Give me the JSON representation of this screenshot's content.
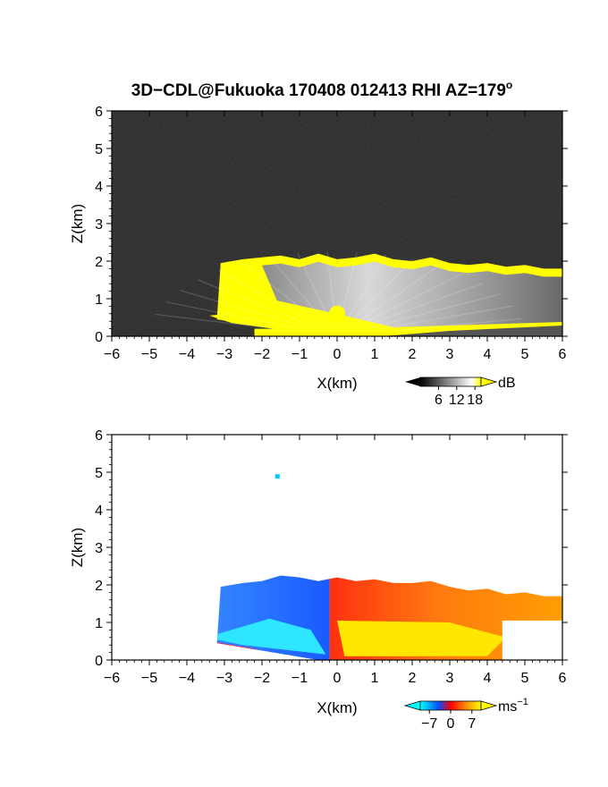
{
  "title": "3D−CDL@Fukuoka 170408 012413 RHI AZ=179",
  "title_superscript": "o",
  "chart_data": [
    {
      "type": "heatmap",
      "panel": "top",
      "variable": "SNR",
      "xlabel": "X(km)",
      "ylabel": "Z(km)",
      "xlim": [
        -6,
        6
      ],
      "ylim": [
        0,
        6
      ],
      "x_ticks": [
        "−6",
        "−5",
        "−4",
        "−3",
        "−2",
        "−1",
        "0",
        "1",
        "2",
        "3",
        "4",
        "5",
        "6"
      ],
      "y_ticks": [
        "0",
        "1",
        "2",
        "3",
        "4",
        "5",
        "6"
      ],
      "background": "#262626",
      "colorbar": {
        "unit": "dB",
        "ticks": [
          "6",
          "12",
          "18"
        ],
        "tick_values": [
          6,
          12,
          18
        ],
        "range": [
          0,
          20
        ],
        "colors": [
          "#000000",
          "#ffffff",
          "#ffff00"
        ]
      },
      "echo_top_km": {
        "x": [
          -3.1,
          -2.5,
          -2.0,
          -1.5,
          -1.0,
          -0.5,
          0.0,
          0.5,
          1.0,
          1.5,
          2.0,
          2.5,
          3.0,
          3.5,
          4.0,
          4.5,
          5.0,
          5.5,
          6.0
        ],
        "z": [
          1.95,
          2.05,
          2.1,
          2.15,
          2.05,
          2.2,
          2.05,
          2.1,
          2.2,
          2.05,
          2.0,
          2.1,
          1.95,
          1.9,
          1.95,
          1.85,
          1.9,
          1.8,
          1.8
        ]
      }
    },
    {
      "type": "heatmap",
      "panel": "bottom",
      "variable": "Doppler velocity",
      "xlabel": "X(km)",
      "ylabel": "Z(km)",
      "xlim": [
        -6,
        6
      ],
      "ylim": [
        0,
        6
      ],
      "x_ticks": [
        "−6",
        "−5",
        "−4",
        "−3",
        "−2",
        "−1",
        "0",
        "1",
        "2",
        "3",
        "4",
        "5",
        "6"
      ],
      "y_ticks": [
        "0",
        "1",
        "2",
        "3",
        "4",
        "5",
        "6"
      ],
      "background": "#ffffff",
      "colorbar": {
        "unit": "ms",
        "unit_superscript": "−1",
        "ticks": [
          "−7",
          "0",
          "7"
        ],
        "tick_values": [
          -7,
          0,
          7
        ],
        "range": [
          -10,
          10
        ],
        "colors": [
          "#00ffff",
          "#0040ff",
          "#ff0000",
          "#ff8000",
          "#ffff00"
        ]
      },
      "echo_top_km": {
        "x": [
          -3.1,
          -2.5,
          -2.0,
          -1.5,
          -1.0,
          -0.5,
          0.0,
          0.5,
          1.0,
          1.5,
          2.0,
          2.5,
          3.0,
          3.5,
          4.0,
          4.5,
          5.0,
          5.5,
          6.0
        ],
        "z": [
          1.95,
          2.05,
          2.1,
          2.25,
          2.2,
          2.1,
          2.2,
          2.1,
          2.15,
          2.05,
          2.05,
          2.1,
          1.95,
          1.85,
          1.9,
          1.75,
          1.8,
          1.7,
          1.7
        ]
      },
      "isolated_echo": {
        "x": -1.6,
        "z": 4.9
      }
    }
  ]
}
